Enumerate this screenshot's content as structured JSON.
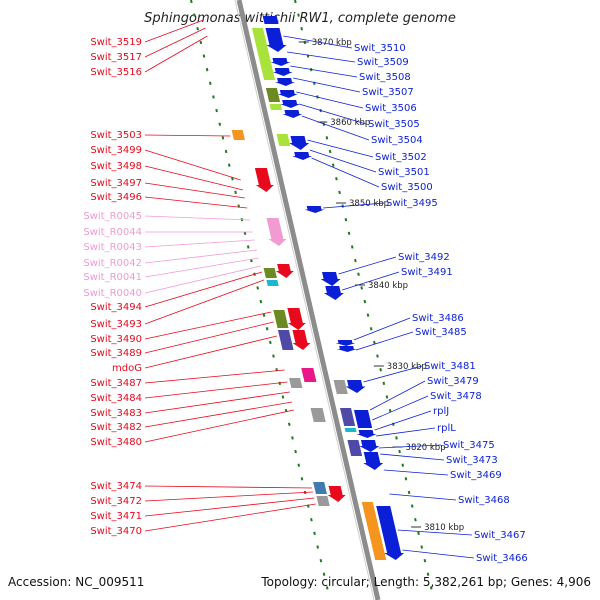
{
  "title": "Sphingomonas wittichii RW1, complete genome",
  "accession_text": "Accession: NC_009511",
  "topology_text": "Topology: circular; Length: 5,382,261 bp; Genes: 4,906",
  "colors": {
    "forward": "#0b1fd6",
    "reverse": "#e8091c",
    "rna": "#f29ad2",
    "lime": "#a8e23a",
    "olive": "#6c8a22",
    "navy": "#4f4aa8",
    "orange": "#f5941e",
    "gray": "#9a9a9a",
    "teal": "#19b9c9",
    "steelblue": "#3f7bb0",
    "magenta": "#e8178a",
    "backbone": "#8c8c8c",
    "tick": "#1e7a1e"
  },
  "ticks": [
    "3870 kbp",
    "3860 kbp",
    "3850 kbp",
    "3840 kbp",
    "3830 kbp",
    "3820 kbp",
    "3810 kbp"
  ],
  "left_labels": [
    {
      "text": "Swit_3519",
      "type": "reverse"
    },
    {
      "text": "Swit_3517",
      "type": "reverse"
    },
    {
      "text": "Swit_3516",
      "type": "reverse"
    },
    {
      "text": "Swit_3503",
      "type": "reverse"
    },
    {
      "text": "Swit_3499",
      "type": "reverse"
    },
    {
      "text": "Swit_3498",
      "type": "reverse"
    },
    {
      "text": "Swit_3497",
      "type": "reverse"
    },
    {
      "text": "Swit_3496",
      "type": "reverse"
    },
    {
      "text": "Swit_R0045",
      "type": "rna"
    },
    {
      "text": "Swit_R0044",
      "type": "rna"
    },
    {
      "text": "Swit_R0043",
      "type": "rna"
    },
    {
      "text": "Swit_R0042",
      "type": "rna"
    },
    {
      "text": "Swit_R0041",
      "type": "rna"
    },
    {
      "text": "Swit_R0040",
      "type": "rna"
    },
    {
      "text": "Swit_3494",
      "type": "reverse"
    },
    {
      "text": "Swit_3493",
      "type": "reverse"
    },
    {
      "text": "Swit_3490",
      "type": "reverse"
    },
    {
      "text": "Swit_3489",
      "type": "reverse"
    },
    {
      "text": "mdoG",
      "type": "reverse"
    },
    {
      "text": "Swit_3487",
      "type": "reverse"
    },
    {
      "text": "Swit_3484",
      "type": "reverse"
    },
    {
      "text": "Swit_3483",
      "type": "reverse"
    },
    {
      "text": "Swit_3482",
      "type": "reverse"
    },
    {
      "text": "Swit_3480",
      "type": "reverse"
    },
    {
      "text": "Swit_3474",
      "type": "reverse"
    },
    {
      "text": "Swit_3472",
      "type": "reverse"
    },
    {
      "text": "Swit_3471",
      "type": "reverse"
    },
    {
      "text": "Swit_3470",
      "type": "reverse"
    }
  ],
  "right_labels": [
    {
      "text": "Swit_3510",
      "type": "forward"
    },
    {
      "text": "Swit_3509",
      "type": "forward"
    },
    {
      "text": "Swit_3508",
      "type": "forward"
    },
    {
      "text": "Swit_3507",
      "type": "forward"
    },
    {
      "text": "Swit_3506",
      "type": "forward"
    },
    {
      "text": "Swit_3505",
      "type": "forward"
    },
    {
      "text": "Swit_3504",
      "type": "forward"
    },
    {
      "text": "Swit_3502",
      "type": "forward"
    },
    {
      "text": "Swit_3501",
      "type": "forward"
    },
    {
      "text": "Swit_3500",
      "type": "forward"
    },
    {
      "text": "Swit_3495",
      "type": "forward"
    },
    {
      "text": "Swit_3492",
      "type": "forward"
    },
    {
      "text": "Swit_3491",
      "type": "forward"
    },
    {
      "text": "Swit_3486",
      "type": "forward"
    },
    {
      "text": "Swit_3485",
      "type": "forward"
    },
    {
      "text": "Swit_3481",
      "type": "forward"
    },
    {
      "text": "Swit_3479",
      "type": "forward"
    },
    {
      "text": "Swit_3478",
      "type": "forward"
    },
    {
      "text": "rplJ",
      "type": "forward"
    },
    {
      "text": "rplL",
      "type": "forward"
    },
    {
      "text": "Swit_3475",
      "type": "forward"
    },
    {
      "text": "Swit_3473",
      "type": "forward"
    },
    {
      "text": "Swit_3469",
      "type": "forward"
    },
    {
      "text": "Swit_3468",
      "type": "forward"
    },
    {
      "text": "Swit_3467",
      "type": "forward"
    },
    {
      "text": "Swit_3466",
      "type": "forward"
    }
  ],
  "features": [
    {
      "lane": "fwd_outer",
      "type": "forward",
      "from": 16,
      "to": 24,
      "shape": "block"
    },
    {
      "lane": "fwd_outer",
      "type": "forward",
      "from": 28,
      "to": 52,
      "shape": "arrow"
    },
    {
      "lane": "fwd_outer",
      "type": "forward",
      "from": 58,
      "to": 66,
      "shape": "arrow"
    },
    {
      "lane": "fwd_outer",
      "type": "forward",
      "from": 68,
      "to": 76,
      "shape": "arrow"
    },
    {
      "lane": "fwd_outer",
      "type": "forward",
      "from": 78,
      "to": 86,
      "shape": "arrow"
    },
    {
      "lane": "fwd_outer",
      "type": "forward",
      "from": 90,
      "to": 98,
      "shape": "arrow"
    },
    {
      "lane": "fwd_outer",
      "type": "forward",
      "from": 100,
      "to": 108,
      "shape": "arrow"
    },
    {
      "lane": "fwd_outer",
      "type": "forward",
      "from": 110,
      "to": 118,
      "shape": "arrow"
    },
    {
      "lane": "fwd_outer",
      "type": "forward",
      "from": 136,
      "to": 150,
      "shape": "arrow"
    },
    {
      "lane": "fwd_outer",
      "type": "forward",
      "from": 152,
      "to": 160,
      "shape": "arrow"
    },
    {
      "lane": "fwd_outer",
      "type": "forward",
      "from": 206,
      "to": 213,
      "shape": "arrow"
    },
    {
      "lane": "fwd_outer",
      "type": "forward",
      "from": 272,
      "to": 286,
      "shape": "arrow"
    },
    {
      "lane": "fwd_outer",
      "type": "forward",
      "from": 286,
      "to": 300,
      "shape": "arrow"
    },
    {
      "lane": "fwd_outer",
      "type": "forward",
      "from": 340,
      "to": 346,
      "shape": "arrow"
    },
    {
      "lane": "fwd_outer",
      "type": "forward",
      "from": 346,
      "to": 352,
      "shape": "arrow"
    },
    {
      "lane": "fwd_outer",
      "type": "forward",
      "from": 380,
      "to": 393,
      "shape": "arrow"
    },
    {
      "lane": "fwd_outer",
      "type": "forward",
      "from": 410,
      "to": 428,
      "shape": "block"
    },
    {
      "lane": "fwd_outer",
      "type": "forward",
      "from": 430,
      "to": 438,
      "shape": "arrow"
    },
    {
      "lane": "fwd_outer",
      "type": "forward",
      "from": 440,
      "to": 452,
      "shape": "arrow"
    },
    {
      "lane": "fwd_outer",
      "type": "forward",
      "from": 452,
      "to": 470,
      "shape": "arrow"
    },
    {
      "lane": "fwd_outer",
      "type": "forward",
      "from": 506,
      "to": 560,
      "shape": "arrow"
    },
    {
      "lane": "fwd_inner",
      "type": "lime",
      "from": 28,
      "to": 80,
      "shape": "block"
    },
    {
      "lane": "fwd_inner",
      "type": "olive",
      "from": 88,
      "to": 102,
      "shape": "block"
    },
    {
      "lane": "fwd_inner",
      "type": "lime",
      "from": 104,
      "to": 110,
      "shape": "block"
    },
    {
      "lane": "fwd_inner",
      "type": "lime",
      "from": 134,
      "to": 146,
      "shape": "block"
    },
    {
      "lane": "fwd_inner",
      "type": "gray",
      "from": 380,
      "to": 394,
      "shape": "block"
    },
    {
      "lane": "fwd_inner",
      "type": "navy",
      "from": 408,
      "to": 426,
      "shape": "block"
    },
    {
      "lane": "fwd_inner",
      "type": "teal",
      "from": 428,
      "to": 432,
      "shape": "block"
    },
    {
      "lane": "fwd_inner",
      "type": "navy",
      "from": 440,
      "to": 456,
      "shape": "block"
    },
    {
      "lane": "fwd_inner",
      "type": "orange",
      "from": 502,
      "to": 560,
      "shape": "block"
    },
    {
      "lane": "rev_inner",
      "type": "reverse",
      "from": 168,
      "to": 192,
      "shape": "arrow"
    },
    {
      "lane": "rev_inner",
      "type": "rna",
      "from": 218,
      "to": 246,
      "shape": "arrow"
    },
    {
      "lane": "rev_inner",
      "type": "reverse",
      "from": 264,
      "to": 278,
      "shape": "arrow"
    },
    {
      "lane": "rev_inner",
      "type": "reverse",
      "from": 308,
      "to": 330,
      "shape": "arrow"
    },
    {
      "lane": "rev_inner",
      "type": "reverse",
      "from": 330,
      "to": 350,
      "shape": "arrow"
    },
    {
      "lane": "rev_inner",
      "type": "magenta",
      "from": 368,
      "to": 382,
      "shape": "block"
    },
    {
      "lane": "rev_inner",
      "type": "gray",
      "from": 408,
      "to": 422,
      "shape": "block"
    },
    {
      "lane": "rev_inner",
      "type": "reverse",
      "from": 486,
      "to": 502,
      "shape": "arrow"
    },
    {
      "lane": "rev_outer",
      "type": "orange",
      "from": 130,
      "to": 140,
      "shape": "block"
    },
    {
      "lane": "rev_outer",
      "type": "olive",
      "from": 268,
      "to": 278,
      "shape": "block"
    },
    {
      "lane": "rev_outer",
      "type": "teal",
      "from": 280,
      "to": 286,
      "shape": "block"
    },
    {
      "lane": "rev_outer",
      "type": "olive",
      "from": 310,
      "to": 328,
      "shape": "block"
    },
    {
      "lane": "rev_outer",
      "type": "navy",
      "from": 330,
      "to": 350,
      "shape": "block"
    },
    {
      "lane": "rev_outer",
      "type": "gray",
      "from": 378,
      "to": 388,
      "shape": "block"
    },
    {
      "lane": "rev_outer",
      "type": "steelblue",
      "from": 482,
      "to": 494,
      "shape": "block"
    },
    {
      "lane": "rev_outer",
      "type": "gray",
      "from": 496,
      "to": 506,
      "shape": "block"
    }
  ]
}
